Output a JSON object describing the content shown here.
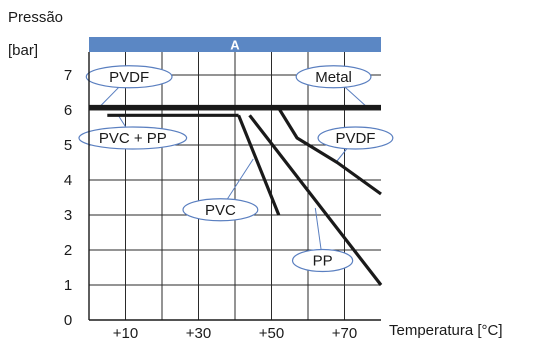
{
  "chart_data": {
    "type": "line",
    "title": "A",
    "ylabel_line1": "Pressão",
    "ylabel_line2": "[bar]",
    "xlabel": "Temperatura [°C]",
    "xlim": [
      0,
      80
    ],
    "ylim": [
      0,
      8
    ],
    "x_ticks": [
      "+10",
      "+30",
      "+50",
      "+70"
    ],
    "y_ticks": [
      "0",
      "1",
      "2",
      "3",
      "4",
      "5",
      "6",
      "7"
    ],
    "grid": true,
    "colors": {
      "banner": "#5b87c4",
      "line": "#1a1a1a",
      "callout_border": "#5a7fc0"
    },
    "series": [
      {
        "label": "PVDF",
        "points": [
          [
            0,
            6.1
          ],
          [
            80,
            6.1
          ]
        ]
      },
      {
        "label": "Metal",
        "points": [
          [
            0,
            6.05
          ],
          [
            80,
            6.05
          ]
        ]
      },
      {
        "label": "PVC + PP",
        "points": [
          [
            5,
            5.85
          ],
          [
            41,
            5.85
          ]
        ]
      },
      {
        "label": "PVC",
        "points": [
          [
            41,
            5.85
          ],
          [
            52,
            3.0
          ]
        ]
      },
      {
        "label": "PP",
        "points": [
          [
            44,
            5.85
          ],
          [
            80,
            1.0
          ]
        ]
      },
      {
        "label": "PVDF",
        "points": [
          [
            52,
            6.05
          ],
          [
            57,
            5.2
          ],
          [
            68,
            4.5
          ],
          [
            80,
            3.6
          ]
        ]
      }
    ],
    "callouts": [
      {
        "text": "PVDF",
        "x": 11,
        "y": 6.95,
        "w": 18,
        "tx": 3,
        "ty": 6.1
      },
      {
        "text": "Metal",
        "x": 67,
        "y": 6.95,
        "w": 15,
        "tx": 76,
        "ty": 6.1
      },
      {
        "text": "PVC + PP",
        "x": 12,
        "y": 5.2,
        "w": 24,
        "tx": 8,
        "ty": 5.85
      },
      {
        "text": "PVDF",
        "x": 73,
        "y": 5.2,
        "w": 15,
        "tx": 68,
        "ty": 4.55
      },
      {
        "text": "PVC",
        "x": 36,
        "y": 3.15,
        "w": 15,
        "tx": 45,
        "ty": 4.6
      },
      {
        "text": "PP",
        "x": 64,
        "y": 1.7,
        "w": 11,
        "tx": 62,
        "ty": 3.2
      }
    ]
  }
}
